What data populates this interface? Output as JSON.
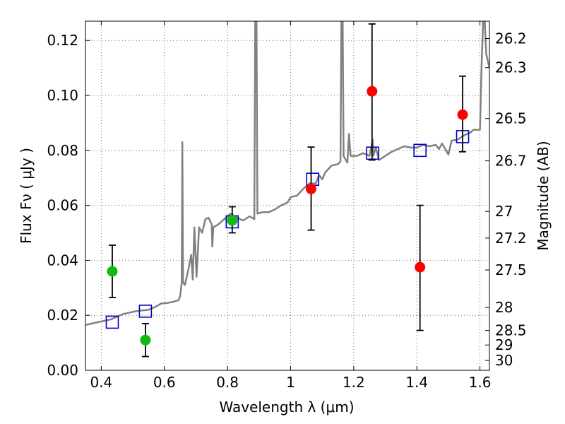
{
  "chart_data": {
    "type": "scatter",
    "xlabel": "Wavelength  λ (μm)",
    "ylabel": "Flux  Fν  ( μJy )",
    "ylabel_right": "Magnitude (AB)",
    "xlim": [
      0.35,
      1.63
    ],
    "ylim": [
      0.0,
      0.127
    ],
    "grid": true,
    "x_ticks": [
      {
        "value": 0.4,
        "label": "0.4"
      },
      {
        "value": 0.6,
        "label": "0.6"
      },
      {
        "value": 0.8,
        "label": "0.8"
      },
      {
        "value": 1.0,
        "label": "1"
      },
      {
        "value": 1.2,
        "label": "1.2"
      },
      {
        "value": 1.4,
        "label": "1.4"
      },
      {
        "value": 1.6,
        "label": "1.6"
      }
    ],
    "y_ticks": [
      {
        "value": 0.0,
        "label": "0.00"
      },
      {
        "value": 0.02,
        "label": "0.02"
      },
      {
        "value": 0.04,
        "label": "0.04"
      },
      {
        "value": 0.06,
        "label": "0.06"
      },
      {
        "value": 0.08,
        "label": "0.08"
      },
      {
        "value": 0.1,
        "label": "0.10"
      },
      {
        "value": 0.12,
        "label": "0.12"
      }
    ],
    "right_ticks": [
      {
        "label": "26.2",
        "flux": 0.1207
      },
      {
        "label": "26.3",
        "flux": 0.1101
      },
      {
        "label": "26.5",
        "flux": 0.0916
      },
      {
        "label": "26.7",
        "flux": 0.0762
      },
      {
        "label": "27",
        "flux": 0.0578
      },
      {
        "label": "27.2",
        "flux": 0.0481
      },
      {
        "label": "27.5",
        "flux": 0.0365
      },
      {
        "label": "28",
        "flux": 0.0229
      },
      {
        "label": "28.5",
        "flux": 0.0145
      },
      {
        "label": "29",
        "flux": 0.0092
      },
      {
        "label": "30",
        "flux": 0.0036
      }
    ],
    "series": [
      {
        "kind": "model-spectrum",
        "color": "#808080",
        "points": [
          [
            0.35,
            0.0165
          ],
          [
            0.37,
            0.017
          ],
          [
            0.39,
            0.0175
          ],
          [
            0.41,
            0.018
          ],
          [
            0.43,
            0.0185
          ],
          [
            0.45,
            0.0195
          ],
          [
            0.47,
            0.0205
          ],
          [
            0.49,
            0.021
          ],
          [
            0.51,
            0.0215
          ],
          [
            0.53,
            0.0218
          ],
          [
            0.55,
            0.022
          ],
          [
            0.57,
            0.023
          ],
          [
            0.59,
            0.0243
          ],
          [
            0.61,
            0.0245
          ],
          [
            0.63,
            0.025
          ],
          [
            0.645,
            0.0255
          ],
          [
            0.65,
            0.027
          ],
          [
            0.655,
            0.032
          ],
          [
            0.657,
            0.083
          ],
          [
            0.659,
            0.032
          ],
          [
            0.665,
            0.031
          ],
          [
            0.675,
            0.036
          ],
          [
            0.685,
            0.042
          ],
          [
            0.69,
            0.033
          ],
          [
            0.695,
            0.052
          ],
          [
            0.702,
            0.034
          ],
          [
            0.71,
            0.052
          ],
          [
            0.72,
            0.05
          ],
          [
            0.73,
            0.055
          ],
          [
            0.74,
            0.0555
          ],
          [
            0.75,
            0.053
          ],
          [
            0.752,
            0.045
          ],
          [
            0.755,
            0.052
          ],
          [
            0.77,
            0.053
          ],
          [
            0.79,
            0.055
          ],
          [
            0.81,
            0.057
          ],
          [
            0.83,
            0.0555
          ],
          [
            0.85,
            0.0545
          ],
          [
            0.87,
            0.056
          ],
          [
            0.885,
            0.055
          ],
          [
            0.888,
            0.127
          ],
          [
            0.892,
            0.127
          ],
          [
            0.895,
            0.057
          ],
          [
            0.91,
            0.0575
          ],
          [
            0.93,
            0.0575
          ],
          [
            0.95,
            0.0585
          ],
          [
            0.97,
            0.06
          ],
          [
            0.99,
            0.061
          ],
          [
            1.0,
            0.063
          ],
          [
            1.02,
            0.0635
          ],
          [
            1.04,
            0.066
          ],
          [
            1.06,
            0.068
          ],
          [
            1.08,
            0.068
          ],
          [
            1.09,
            0.071
          ],
          [
            1.1,
            0.0695
          ],
          [
            1.11,
            0.072
          ],
          [
            1.13,
            0.0745
          ],
          [
            1.15,
            0.075
          ],
          [
            1.158,
            0.076
          ],
          [
            1.161,
            0.127
          ],
          [
            1.165,
            0.127
          ],
          [
            1.168,
            0.078
          ],
          [
            1.18,
            0.0755
          ],
          [
            1.185,
            0.086
          ],
          [
            1.19,
            0.078
          ],
          [
            1.21,
            0.078
          ],
          [
            1.23,
            0.079
          ],
          [
            1.25,
            0.078
          ],
          [
            1.26,
            0.084
          ],
          [
            1.262,
            0.078
          ],
          [
            1.27,
            0.081
          ],
          [
            1.28,
            0.0765
          ],
          [
            1.3,
            0.078
          ],
          [
            1.32,
            0.0795
          ],
          [
            1.34,
            0.0805
          ],
          [
            1.36,
            0.0815
          ],
          [
            1.38,
            0.081
          ],
          [
            1.4,
            0.081
          ],
          [
            1.42,
            0.082
          ],
          [
            1.44,
            0.0815
          ],
          [
            1.46,
            0.082
          ],
          [
            1.47,
            0.0805
          ],
          [
            1.48,
            0.0825
          ],
          [
            1.5,
            0.0785
          ],
          [
            1.51,
            0.0835
          ],
          [
            1.53,
            0.084
          ],
          [
            1.55,
            0.0855
          ],
          [
            1.57,
            0.0865
          ],
          [
            1.58,
            0.0875
          ],
          [
            1.6,
            0.0875
          ],
          [
            1.605,
            0.11
          ],
          [
            1.61,
            0.127
          ],
          [
            1.615,
            0.127
          ],
          [
            1.62,
            0.115
          ],
          [
            1.63,
            0.11
          ]
        ]
      },
      {
        "kind": "model-photometry",
        "marker": "open-square",
        "color": "#0000cc",
        "points": [
          {
            "x": 0.435,
            "y": 0.0175
          },
          {
            "x": 0.54,
            "y": 0.0215
          },
          {
            "x": 0.815,
            "y": 0.054
          },
          {
            "x": 1.07,
            "y": 0.0695
          },
          {
            "x": 1.26,
            "y": 0.079
          },
          {
            "x": 1.41,
            "y": 0.08
          },
          {
            "x": 1.545,
            "y": 0.085
          }
        ]
      },
      {
        "kind": "observed-optical",
        "marker": "filled-circle",
        "color": "#11bb11",
        "points": [
          {
            "x": 0.435,
            "y": 0.036,
            "ylo": 0.0265,
            "yhi": 0.0455
          },
          {
            "x": 0.54,
            "y": 0.011,
            "ylo": 0.005,
            "yhi": 0.017
          },
          {
            "x": 0.815,
            "y": 0.0545,
            "ylo": 0.05,
            "yhi": 0.0595
          }
        ]
      },
      {
        "kind": "observed-infrared",
        "marker": "filled-circle",
        "color": "#ff0000",
        "points": [
          {
            "x": 1.065,
            "y": 0.066,
            "ylo": 0.051,
            "yhi": 0.0812
          },
          {
            "x": 1.258,
            "y": 0.1015,
            "ylo": 0.0765,
            "yhi": 0.126
          },
          {
            "x": 1.41,
            "y": 0.0375,
            "ylo": 0.0145,
            "yhi": 0.06
          },
          {
            "x": 1.545,
            "y": 0.093,
            "ylo": 0.0795,
            "yhi": 0.107
          }
        ]
      }
    ]
  }
}
